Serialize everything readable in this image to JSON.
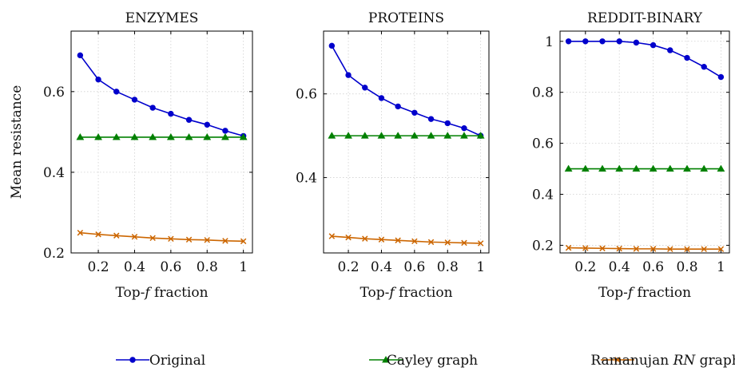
{
  "chart_data": [
    {
      "type": "line",
      "title": "ENZYMES",
      "xlabel": "Top-",
      "xlabel_var": "f",
      "xlabel_suffix": " fraction",
      "ylabel": "Mean resistance",
      "xlim": [
        0.05,
        1.05
      ],
      "ylim": [
        0.2,
        0.75
      ],
      "xticks": [
        0.2,
        0.4,
        0.6,
        0.8,
        1
      ],
      "xtick_labels": [
        "0.2",
        "0.4",
        "0.6",
        "0.8",
        "1"
      ],
      "yticks": [
        0.2,
        0.4,
        0.6
      ],
      "ytick_labels": [
        "0.2",
        "0.4",
        "0.6"
      ],
      "grid": true,
      "x": [
        0.1,
        0.2,
        0.3,
        0.4,
        0.5,
        0.6,
        0.7,
        0.8,
        0.9,
        1.0
      ],
      "series": [
        {
          "name": "Original",
          "color": "#0000cc",
          "marker": "circle",
          "values": [
            0.69,
            0.63,
            0.6,
            0.58,
            0.56,
            0.545,
            0.53,
            0.518,
            0.503,
            0.49
          ]
        },
        {
          "name": "Cayley graph",
          "color": "#008000",
          "marker": "triangle",
          "values": [
            0.487,
            0.487,
            0.487,
            0.487,
            0.487,
            0.487,
            0.487,
            0.487,
            0.487,
            0.487
          ]
        },
        {
          "name": "Ramanujan RN graph",
          "color": "#cc6600",
          "marker": "cross",
          "values": [
            0.25,
            0.246,
            0.243,
            0.24,
            0.237,
            0.235,
            0.233,
            0.232,
            0.23,
            0.229
          ]
        }
      ]
    },
    {
      "type": "line",
      "title": "PROTEINS",
      "xlabel": "Top-",
      "xlabel_var": "f",
      "xlabel_suffix": " fraction",
      "ylabel": "",
      "xlim": [
        0.05,
        1.05
      ],
      "ylim": [
        0.22,
        0.75
      ],
      "xticks": [
        0.2,
        0.4,
        0.6,
        0.8,
        1
      ],
      "xtick_labels": [
        "0.2",
        "0.4",
        "0.6",
        "0.8",
        "1"
      ],
      "yticks": [
        0.4,
        0.6
      ],
      "ytick_labels": [
        "0.4",
        "0.6"
      ],
      "grid": true,
      "x": [
        0.1,
        0.2,
        0.3,
        0.4,
        0.5,
        0.6,
        0.7,
        0.8,
        0.9,
        1.0
      ],
      "series": [
        {
          "name": "Original",
          "color": "#0000cc",
          "marker": "circle",
          "values": [
            0.715,
            0.645,
            0.615,
            0.59,
            0.57,
            0.555,
            0.54,
            0.53,
            0.518,
            0.5
          ]
        },
        {
          "name": "Cayley graph",
          "color": "#008000",
          "marker": "triangle",
          "values": [
            0.5,
            0.5,
            0.5,
            0.5,
            0.5,
            0.5,
            0.5,
            0.5,
            0.5,
            0.5
          ]
        },
        {
          "name": "Ramanujan RN graph",
          "color": "#cc6600",
          "marker": "cross",
          "values": [
            0.26,
            0.257,
            0.254,
            0.252,
            0.25,
            0.248,
            0.246,
            0.245,
            0.244,
            0.243
          ]
        }
      ]
    },
    {
      "type": "line",
      "title": "REDDIT-BINARY",
      "xlabel": "Top-",
      "xlabel_var": "f",
      "xlabel_suffix": " fraction",
      "ylabel": "",
      "xlim": [
        0.05,
        1.05
      ],
      "ylim": [
        0.17,
        1.04
      ],
      "xticks": [
        0.2,
        0.4,
        0.6,
        0.8,
        1
      ],
      "xtick_labels": [
        "0.2",
        "0.4",
        "0.6",
        "0.8",
        "1"
      ],
      "yticks": [
        0.2,
        0.4,
        0.6,
        0.8,
        1
      ],
      "ytick_labels": [
        "0.2",
        "0.4",
        "0.6",
        "0.8",
        "1"
      ],
      "grid": true,
      "x": [
        0.1,
        0.2,
        0.3,
        0.4,
        0.5,
        0.6,
        0.7,
        0.8,
        0.9,
        1.0
      ],
      "series": [
        {
          "name": "Original",
          "color": "#0000cc",
          "marker": "circle",
          "values": [
            1.0,
            1.0,
            1.0,
            1.0,
            0.995,
            0.985,
            0.965,
            0.935,
            0.9,
            0.86
          ]
        },
        {
          "name": "Cayley graph",
          "color": "#008000",
          "marker": "triangle",
          "values": [
            0.5,
            0.5,
            0.5,
            0.5,
            0.5,
            0.5,
            0.5,
            0.5,
            0.5,
            0.5
          ]
        },
        {
          "name": "Ramanujan RN graph",
          "color": "#cc6600",
          "marker": "cross",
          "values": [
            0.19,
            0.189,
            0.188,
            0.187,
            0.186,
            0.186,
            0.185,
            0.185,
            0.185,
            0.185
          ]
        }
      ]
    }
  ],
  "legend": {
    "placement": "bottom",
    "items": [
      {
        "label": "Original",
        "color": "#0000cc",
        "marker": "circle"
      },
      {
        "label": "Cayley graph",
        "color": "#008000",
        "marker": "triangle"
      },
      {
        "label_prefix": "Ramanujan ",
        "label_var": "RN",
        "label_suffix": " graph",
        "color": "#cc6600",
        "marker": "cross"
      }
    ]
  }
}
